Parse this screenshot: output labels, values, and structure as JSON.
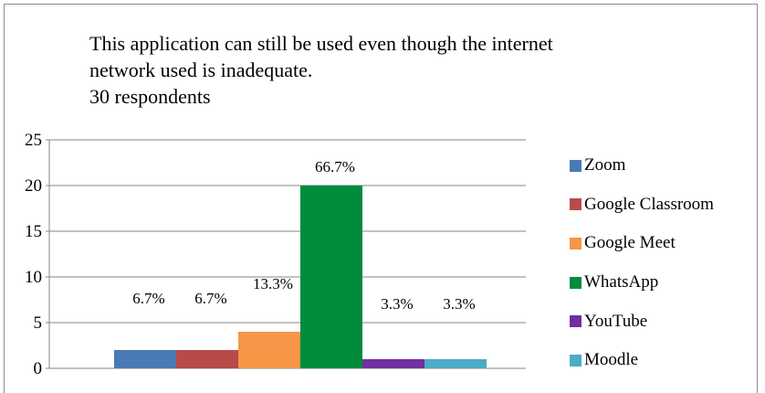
{
  "chart_data": {
    "type": "bar",
    "title_lines": [
      "This application can still be used even though the internet",
      "network used is inadequate.",
      "30 respondents"
    ],
    "xlabel": "",
    "ylabel": "",
    "ylim": [
      0,
      25
    ],
    "yticks": [
      "0",
      "5",
      "10",
      "15",
      "20",
      "25"
    ],
    "grid": true,
    "legend_position": "right",
    "series": [
      {
        "name": "Zoom",
        "value": 2,
        "label": "6.7%",
        "color": "#4a7ab5"
      },
      {
        "name": "Google Classroom",
        "value": 2,
        "label": "6.7%",
        "color": "#b84b48"
      },
      {
        "name": "Google Meet",
        "value": 4,
        "label": "13.3%",
        "color": "#f79646"
      },
      {
        "name": "WhatsApp",
        "value": 20,
        "label": "66.7%",
        "color": "#008c3a"
      },
      {
        "name": "YouTube",
        "value": 1,
        "label": "3.3%",
        "color": "#7030a0"
      },
      {
        "name": "Moodle",
        "value": 1,
        "label": "3.3%",
        "color": "#4bacc6"
      }
    ]
  }
}
